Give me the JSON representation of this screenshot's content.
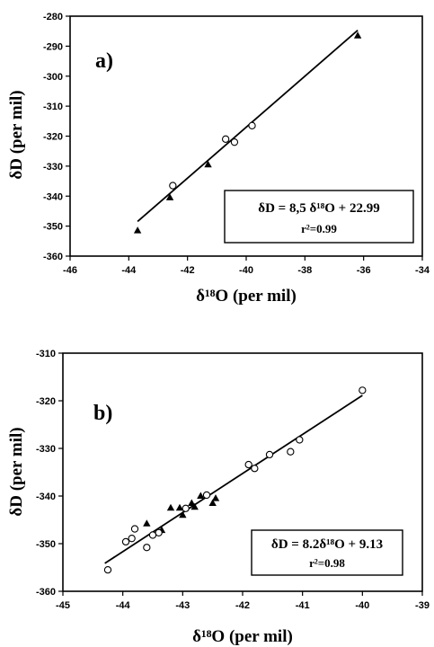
{
  "chart_data": [
    {
      "type": "scatter",
      "panel_label": "a)",
      "xlabel": "δ¹⁸O (per mil)",
      "ylabel": "δD (per mil)",
      "xlim": [
        -46,
        -34
      ],
      "ylim": [
        -360,
        -280
      ],
      "xticks": [
        -46,
        -44,
        -42,
        -40,
        -38,
        -36,
        -34
      ],
      "yticks": [
        -280,
        -290,
        -300,
        -310,
        -320,
        -330,
        -340,
        -350,
        -360
      ],
      "grid": false,
      "equation": "δD = 8,5 δ¹⁸O + 22.99",
      "r_squared": "r²=0.99",
      "series": [
        {
          "marker": "triangle",
          "points": [
            [
              -43.7,
              -351.5
            ],
            [
              -42.6,
              -340.5
            ],
            [
              -41.3,
              -329.5
            ],
            [
              -36.2,
              -286.5
            ]
          ]
        },
        {
          "marker": "circle",
          "points": [
            [
              -42.5,
              -336.5
            ],
            [
              -40.7,
              -321
            ],
            [
              -40.4,
              -322
            ],
            [
              -39.8,
              -316.5
            ]
          ]
        }
      ],
      "fit": {
        "slope": 8.5,
        "intercept": 22.99,
        "x_range": [
          -43.7,
          -36.2
        ]
      }
    },
    {
      "type": "scatter",
      "panel_label": "b)",
      "xlabel": "δ¹⁸O (per mil)",
      "ylabel": "δD (per mil)",
      "xlim": [
        -45,
        -39
      ],
      "ylim": [
        -360,
        -310
      ],
      "xticks": [
        -45,
        -44,
        -43,
        -42,
        -41,
        -40,
        -39
      ],
      "yticks": [
        -310,
        -320,
        -330,
        -340,
        -350,
        -360
      ],
      "grid": false,
      "equation": "δD = 8.2δ¹⁸O + 9.13",
      "r_squared": "r²=0.98",
      "series": [
        {
          "marker": "triangle",
          "points": [
            [
              -43.6,
              -345.8
            ],
            [
              -43.35,
              -347.2
            ],
            [
              -43.2,
              -342.5
            ],
            [
              -43.05,
              -342.5
            ],
            [
              -43.0,
              -344
            ],
            [
              -42.85,
              -341.5
            ],
            [
              -42.8,
              -342.3
            ],
            [
              -42.7,
              -340
            ],
            [
              -42.5,
              -341.5
            ],
            [
              -42.45,
              -340.5
            ]
          ]
        },
        {
          "marker": "circle",
          "points": [
            [
              -44.25,
              -355.5
            ],
            [
              -43.95,
              -349.6
            ],
            [
              -43.85,
              -348.9
            ],
            [
              -43.8,
              -346.9
            ],
            [
              -43.6,
              -350.8
            ],
            [
              -43.5,
              -348.2
            ],
            [
              -43.4,
              -347.7
            ],
            [
              -42.95,
              -342.6
            ],
            [
              -42.6,
              -339.8
            ],
            [
              -41.9,
              -333.4
            ],
            [
              -41.8,
              -334.2
            ],
            [
              -41.55,
              -331.3
            ],
            [
              -41.2,
              -330.7
            ],
            [
              -41.05,
              -328.2
            ],
            [
              -40.0,
              -317.8
            ]
          ]
        }
      ],
      "fit": {
        "slope": 8.2,
        "intercept": 9.13,
        "x_range": [
          -44.3,
          -40.0
        ]
      }
    }
  ]
}
